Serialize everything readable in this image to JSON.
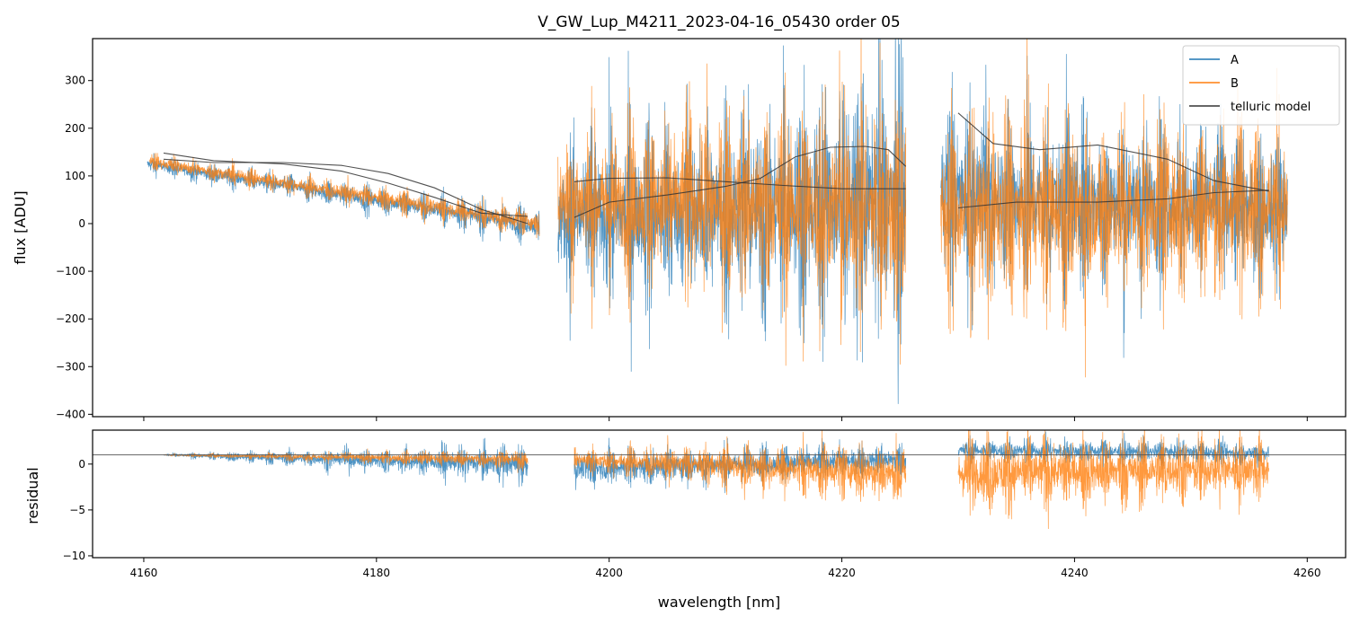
{
  "chart_data": [
    {
      "type": "line",
      "panel": "flux",
      "title": "V_GW_Lup_M4211_2023-04-16_05430  order 05",
      "xlabel": "",
      "ylabel": "flux [ADU]",
      "xlim": [
        4155.6,
        4263.3
      ],
      "ylim": [
        -405,
        388
      ],
      "xticks": [
        4160,
        4180,
        4200,
        4220,
        4240,
        4260
      ],
      "yticks": [
        -400,
        -300,
        -200,
        -100,
        0,
        100,
        200,
        300
      ],
      "ytick_labels": [
        "−400",
        "−300",
        "−200",
        "−100",
        "0",
        "100",
        "200",
        "300"
      ],
      "legend_position": "top-right",
      "series": [
        {
          "name": "A",
          "color": "#1f77b4",
          "style": "noisy-spectrum",
          "segments": [
            {
              "x_start": 4160.3,
              "x_end": 4194.0,
              "start_level": 125,
              "end_level": -5,
              "noise_start": 20,
              "noise_end": 40
            },
            {
              "x_start": 4195.6,
              "x_end": 4225.5,
              "start_level": 10,
              "end_level": 50,
              "noise_start": 200,
              "noise_end": 350
            },
            {
              "x_start": 4228.5,
              "x_end": 4258.3,
              "start_level": 60,
              "end_level": 30,
              "noise_start": 250,
              "noise_end": 180
            }
          ]
        },
        {
          "name": "B",
          "color": "#ff7f0e",
          "style": "noisy-spectrum",
          "segments": [
            {
              "x_start": 4160.5,
              "x_end": 4194.0,
              "start_level": 130,
              "end_level": 0,
              "noise_start": 20,
              "noise_end": 35
            },
            {
              "x_start": 4195.6,
              "x_end": 4225.5,
              "start_level": 50,
              "end_level": 30,
              "noise_start": 180,
              "noise_end": 320
            },
            {
              "x_start": 4228.5,
              "x_end": 4258.3,
              "start_level": 20,
              "end_level": 40,
              "noise_start": 250,
              "noise_end": 220
            }
          ]
        },
        {
          "name": "telluric model",
          "color": "#333333",
          "style": "model",
          "curves": [
            {
              "x": [
                4161.7,
                4166,
                4172,
                4177,
                4181,
                4185,
                4189,
                4193
              ],
              "y": [
                148,
                132,
                125,
                110,
                85,
                55,
                22,
                15
              ]
            },
            {
              "x": [
                4161.7,
                4166,
                4172,
                4177,
                4181,
                4185,
                4189,
                4193
              ],
              "y": [
                135,
                128,
                128,
                122,
                105,
                75,
                30,
                0
              ]
            },
            {
              "x": [
                4197,
                4200,
                4205,
                4210,
                4215,
                4220,
                4225.5
              ],
              "y": [
                88,
                95,
                96,
                88,
                80,
                73,
                73
              ]
            },
            {
              "x": [
                4197,
                4200,
                4205,
                4210,
                4213,
                4216,
                4219,
                4222,
                4224,
                4225.5
              ],
              "y": [
                13,
                45,
                60,
                78,
                95,
                140,
                160,
                162,
                155,
                120
              ]
            },
            {
              "x": [
                4230,
                4233,
                4237,
                4242,
                4248,
                4252,
                4256.7
              ],
              "y": [
                232,
                168,
                155,
                165,
                135,
                90,
                68
              ]
            },
            {
              "x": [
                4230,
                4235,
                4242,
                4248,
                4252,
                4256.7
              ],
              "y": [
                33,
                45,
                45,
                52,
                65,
                70
              ]
            }
          ]
        }
      ]
    },
    {
      "type": "line",
      "panel": "residual",
      "title": "",
      "xlabel": "wavelength [nm]",
      "ylabel": "residual",
      "xlim": [
        4155.6,
        4263.3
      ],
      "ylim": [
        -10.2,
        3.7
      ],
      "xticks": [
        4160,
        4180,
        4200,
        4220,
        4240,
        4260
      ],
      "xtick_labels": [
        "4160",
        "4180",
        "4200",
        "4220",
        "4240",
        "4260"
      ],
      "yticks": [
        -10,
        -5,
        0
      ],
      "ytick_labels": [
        "−10",
        "−5",
        "0"
      ],
      "reference_line": 1,
      "series": [
        {
          "name": "A",
          "color": "#1f77b4",
          "segments": [
            {
              "x_start": 4161.7,
              "x_end": 4193.0,
              "start_level": 1.0,
              "end_level": 0.0,
              "noise_start": 0.15,
              "noise_end": 2.5
            },
            {
              "x_start": 4197.0,
              "x_end": 4225.5,
              "start_level": -0.5,
              "end_level": 0.5,
              "noise_start": 2.5,
              "noise_end": 2.0
            },
            {
              "x_start": 4230.0,
              "x_end": 4256.7,
              "start_level": 1.5,
              "end_level": 1.2,
              "noise_start": 1.5,
              "noise_end": 1.5
            }
          ]
        },
        {
          "name": "B",
          "color": "#ff7f0e",
          "segments": [
            {
              "x_start": 4161.7,
              "x_end": 4193.0,
              "start_level": 1.0,
              "end_level": 0.5,
              "noise_start": 0.1,
              "noise_end": 1.2
            },
            {
              "x_start": 4197.0,
              "x_end": 4225.5,
              "start_level": 0.5,
              "end_level": -1.0,
              "noise_start": 1.5,
              "noise_end": 4.0
            },
            {
              "x_start": 4230.0,
              "x_end": 4256.7,
              "start_level": -1.0,
              "end_level": -0.5,
              "noise_start": 5.0,
              "noise_end": 4.0
            }
          ]
        }
      ]
    }
  ]
}
